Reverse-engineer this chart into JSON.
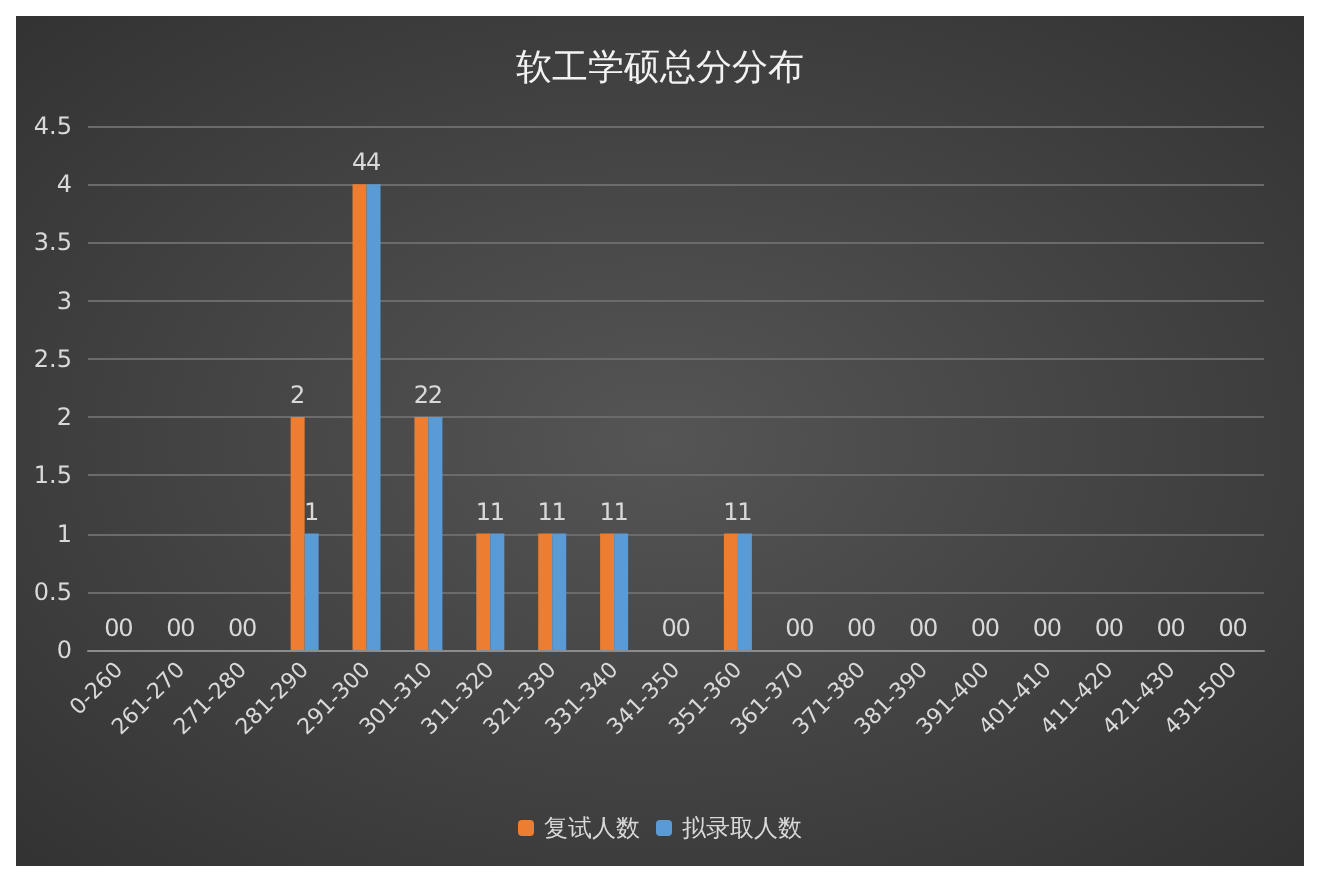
{
  "chart_data": {
    "type": "bar",
    "title": "软工学硕总分分布",
    "categories": [
      "0-260",
      "261-270",
      "271-280",
      "281-290",
      "291-300",
      "301-310",
      "311-320",
      "321-330",
      "331-340",
      "341-350",
      "351-360",
      "361-370",
      "371-380",
      "381-390",
      "391-400",
      "401-410",
      "411-420",
      "421-430",
      "431-500"
    ],
    "series": [
      {
        "name": "复试人数",
        "color": "#ed7d31",
        "values": [
          0,
          0,
          0,
          2,
          4,
          2,
          1,
          1,
          1,
          0,
          1,
          0,
          0,
          0,
          0,
          0,
          0,
          0,
          0
        ]
      },
      {
        "name": "拟录取人数",
        "color": "#5b9bd5",
        "values": [
          0,
          0,
          0,
          1,
          4,
          2,
          1,
          1,
          1,
          0,
          1,
          0,
          0,
          0,
          0,
          0,
          0,
          0,
          0
        ]
      }
    ],
    "ylim": [
      0,
      4.5
    ],
    "yticks": [
      0,
      0.5,
      1,
      1.5,
      2,
      2.5,
      3,
      3.5,
      4,
      4.5
    ],
    "grid": "y",
    "legend": "bottom",
    "data_labels": true
  }
}
